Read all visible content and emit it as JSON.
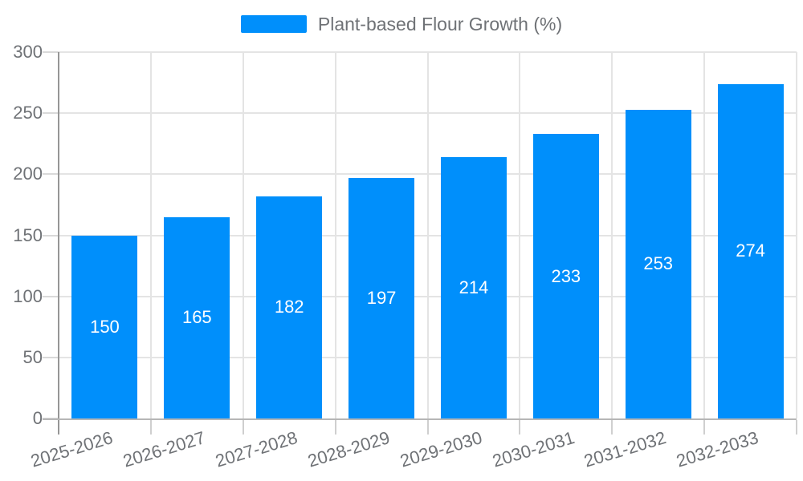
{
  "chart_data": {
    "type": "bar",
    "title": "",
    "categories": [
      "2025-2026",
      "2026-2027",
      "2027-2028",
      "2028-2029",
      "2029-2030",
      "2030-2031",
      "2031-2032",
      "2032-2033"
    ],
    "series": [
      {
        "name": "Plant-based Flour Growth (%)",
        "values": [
          150,
          165,
          182,
          197,
          214,
          233,
          253,
          274
        ]
      }
    ],
    "value_labels": [
      "150",
      "165",
      "182",
      "197",
      "214",
      "233",
      "253",
      "274"
    ],
    "yticks": [
      0,
      50,
      100,
      150,
      200,
      250,
      300
    ],
    "ylim": [
      0,
      300
    ],
    "xlabel": "",
    "ylabel": "",
    "grid": true,
    "legend_position": "top",
    "colors": {
      "bar": "#008FFB",
      "value_label": "#ffffff",
      "axis_label": "#6f7276",
      "gridline": "#e4e4e4",
      "y_tick": "#d9d9d9",
      "x_tick": "#cfcfcf",
      "y_axis_line": "#969696",
      "x_axis_line": "#b6b6b6",
      "background": "#ffffff"
    }
  }
}
